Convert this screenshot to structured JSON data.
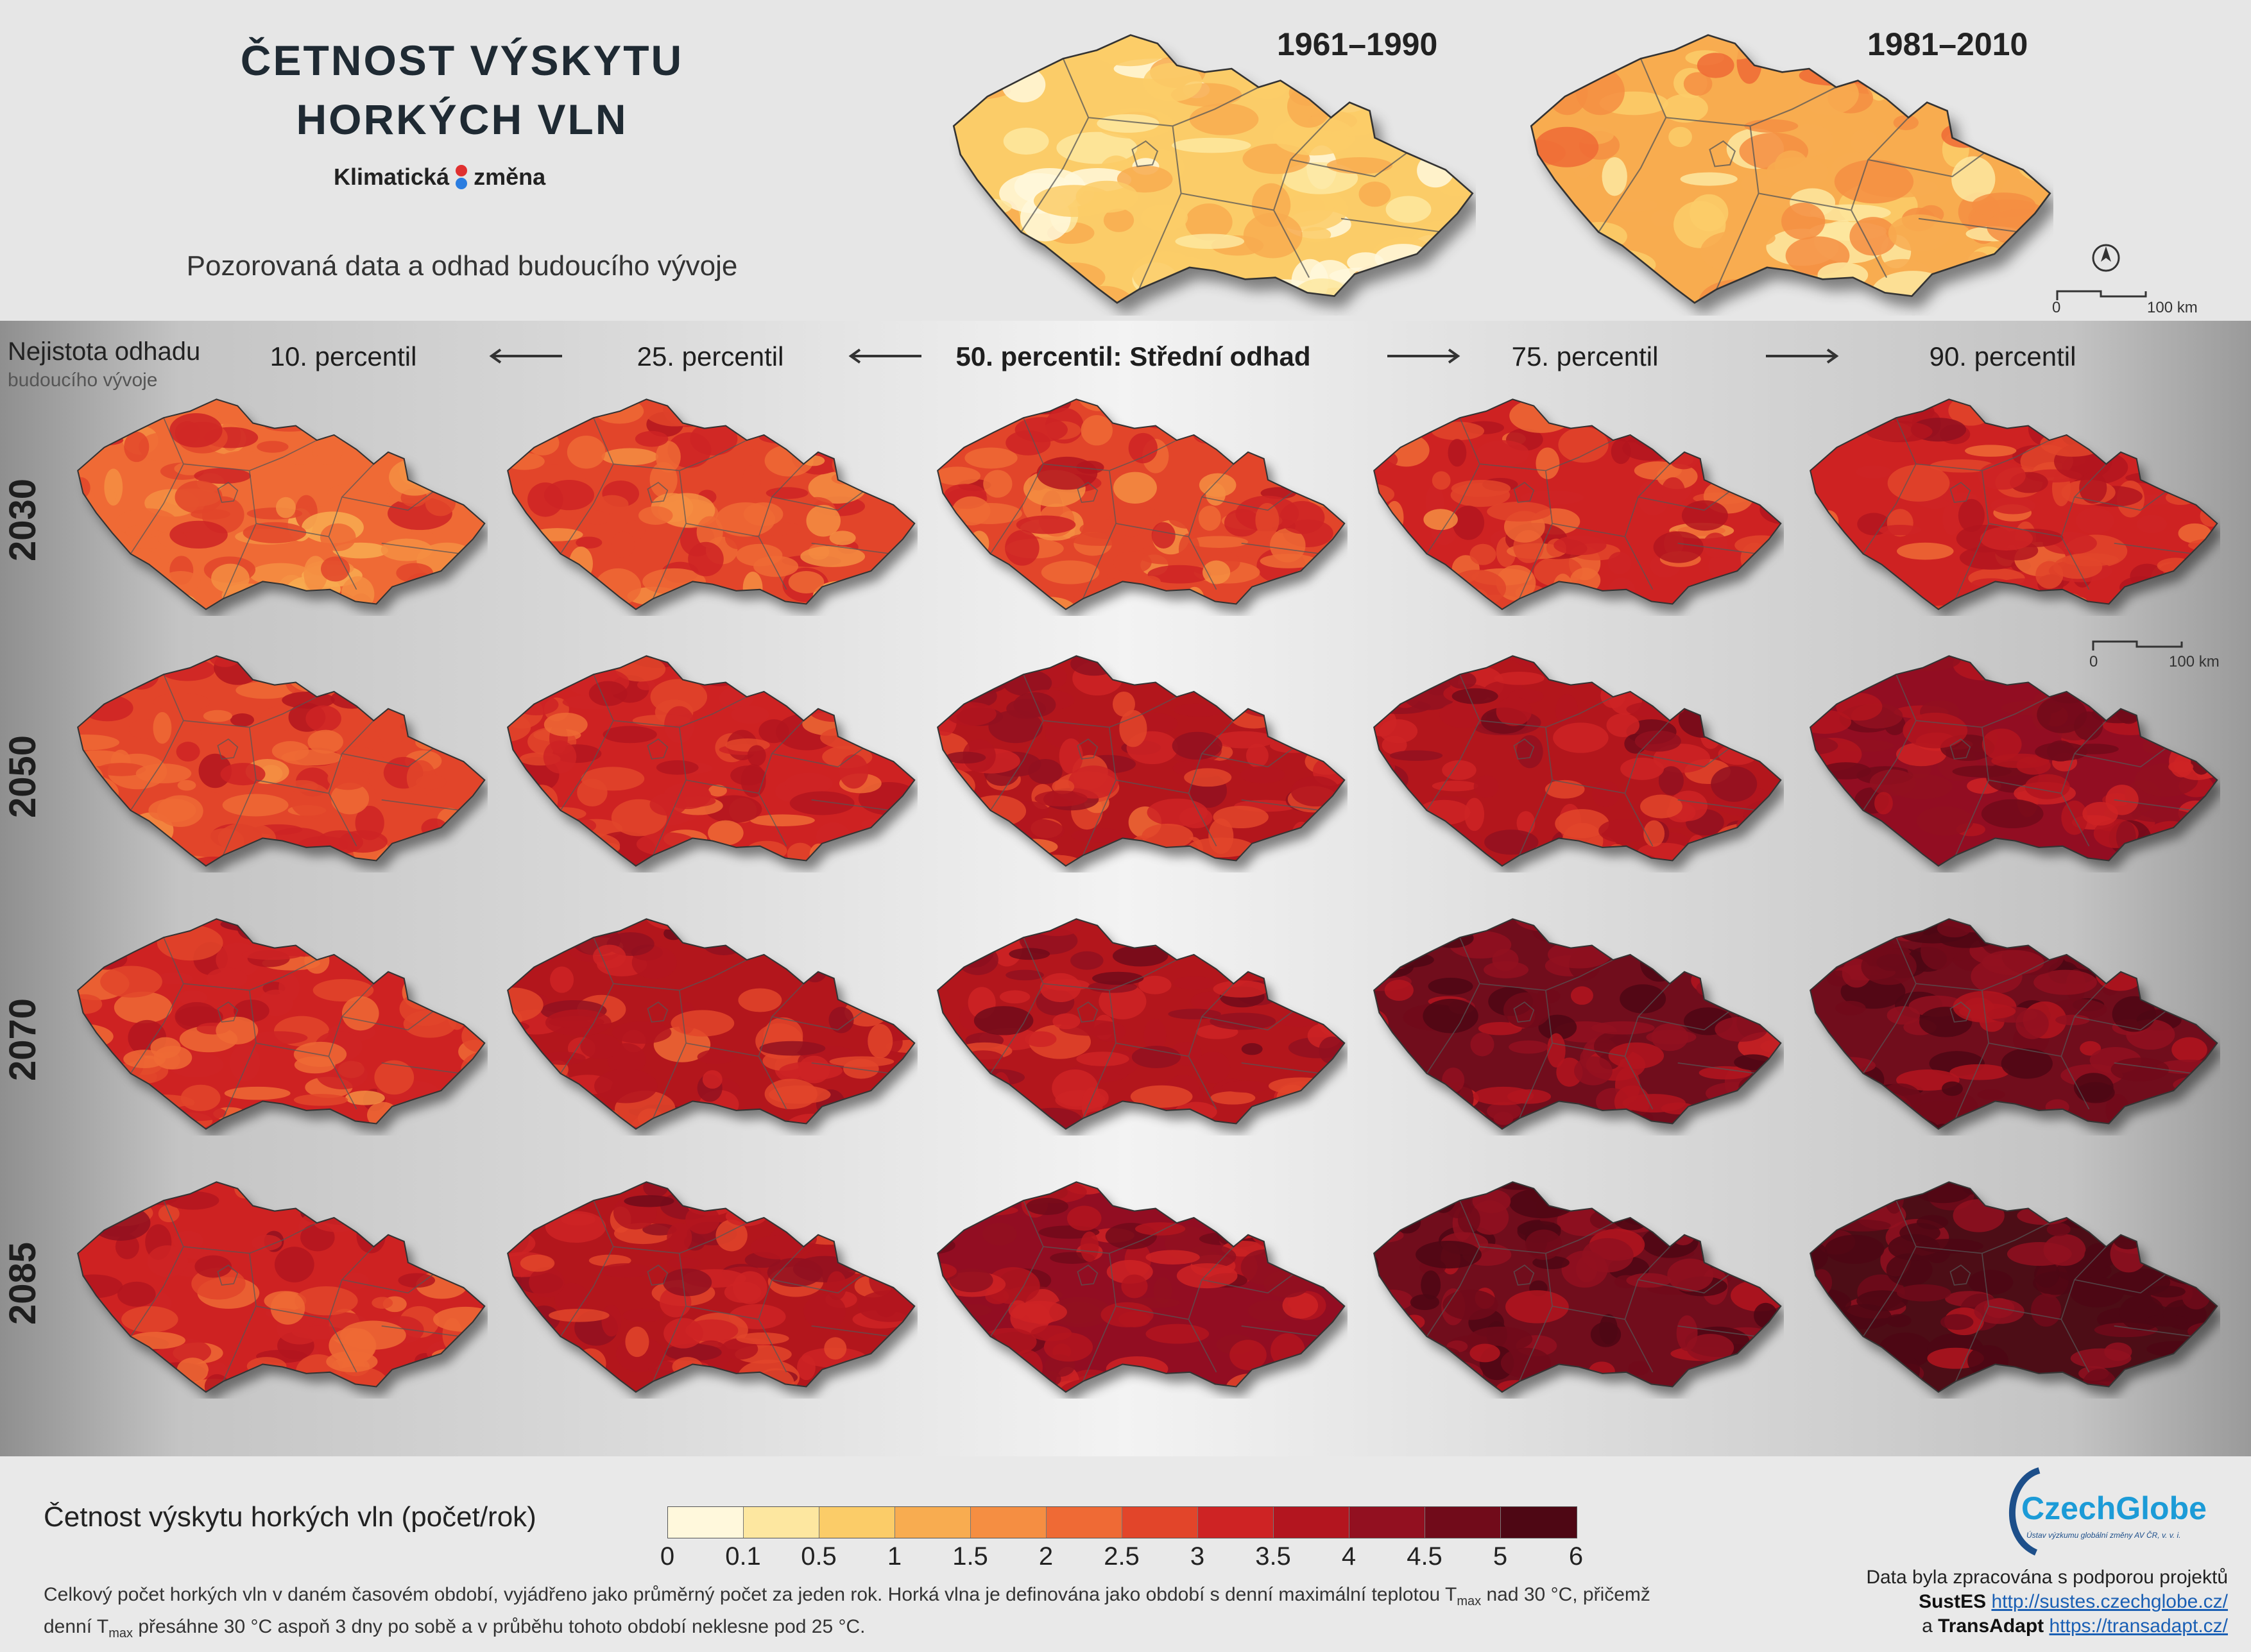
{
  "header": {
    "title_line1": "ČETNOST VÝSKYTU",
    "title_line2": "HORKÝCH VLN",
    "brand_left": "Klimatická",
    "brand_right": "změna",
    "subtitle": "Pozorovaná data a odhad budoucího vývoje",
    "periods": [
      "1961–1990",
      "1981–2010"
    ],
    "scale_zero": "0",
    "scale_max": "100 km"
  },
  "grid": {
    "uncertainty_title": "Nejistota odhadu",
    "uncertainty_sub": "budoucího vývoje",
    "columns": [
      "10. percentil",
      "25. percentil",
      "50. percentil: Střední odhad",
      "75. percentil",
      "90. percentil"
    ],
    "years": [
      "2030",
      "2050",
      "2070",
      "2085"
    ]
  },
  "legend": {
    "title": "Četnost výskytu horkých vln (počet/rok)",
    "ticks": [
      "0",
      "0.1",
      "0.5",
      "1",
      "1.5",
      "2",
      "2.5",
      "3",
      "3.5",
      "4",
      "4.5",
      "5",
      "6"
    ],
    "colors": [
      "#fff8dc",
      "#fde7a0",
      "#fbcc68",
      "#f8ac50",
      "#f58e42",
      "#ef6a35",
      "#e2452a",
      "#ce2324",
      "#b3151f",
      "#921020",
      "#710b1a",
      "#4e0714"
    ]
  },
  "maps": {
    "baseline_levels": [
      0.7,
      1.3
    ],
    "levels": [
      [
        2.4,
        2.6,
        2.8,
        3.0,
        3.2
      ],
      [
        2.9,
        3.1,
        3.5,
        3.8,
        4.1
      ],
      [
        3.1,
        3.5,
        3.9,
        4.5,
        4.7
      ],
      [
        3.2,
        3.6,
        4.1,
        4.8,
        5.0
      ]
    ]
  },
  "note": {
    "p1": "Celkový počet horkých vln v daném časovém období, vyjádřeno jako průměrný počet za jeden rok. Horká vlna je definována jako období s denní maximální teplotou T",
    "sub1": "max",
    "p2": " nad 30 °C, přičemž",
    "p3": "denní T",
    "sub2": "max",
    "p4": " přesáhne 30 °C aspoň 3 dny po sobě a v průběhu tohoto období neklesne pod 25 °C."
  },
  "footer": {
    "logo": "CzechGlobe",
    "logo_sub": "Ústav výzkumu globální změny AV ČR, v. v. i.",
    "credit_line1": "Data byla zpracována s podporou projektů",
    "project1": "SustES",
    "link1": "http://sustes.czechglobe.cz/",
    "conj": "a",
    "project2": "TransAdapt",
    "link2": "https://transadapt.cz/"
  },
  "colors": {
    "brand_red": "#e03030",
    "brand_blue": "#2b7de0"
  }
}
